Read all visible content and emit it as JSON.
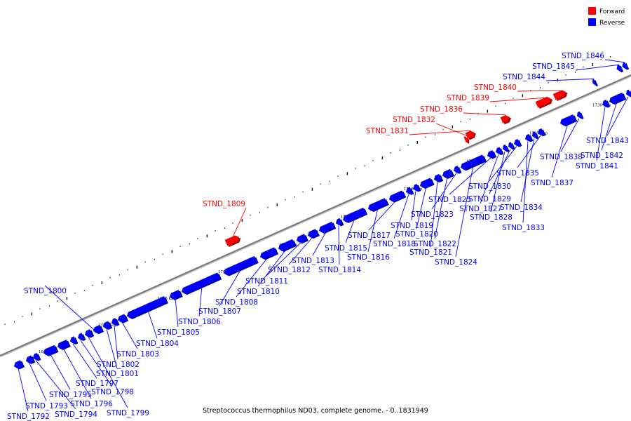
{
  "caption": "Streptococcus thermophilus ND03, complete genome. - 0..1831949",
  "legend": [
    {
      "label": "Forward",
      "color": "#ff0000"
    },
    {
      "label": "Reverse",
      "color": "#0000ff"
    }
  ],
  "colors": {
    "forward": "#ff0000",
    "reverse": "#0000ff",
    "axis": "#7a7a7a"
  },
  "kbp_labels": [
    "1685 kbp",
    "1690 kbp",
    "1695 kbp",
    "1700 kbp",
    "1705 kbp",
    "1710 kbp",
    "1715 kbp",
    "1720 kbp",
    "1725 kbp",
    "1730 kbp"
  ],
  "genes": [
    {
      "name": "STND_1792",
      "strand": "reverse"
    },
    {
      "name": "STND_1793",
      "strand": "reverse"
    },
    {
      "name": "STND_1794",
      "strand": "reverse"
    },
    {
      "name": "STND_1795",
      "strand": "reverse"
    },
    {
      "name": "STND_1796",
      "strand": "reverse"
    },
    {
      "name": "STND_1797",
      "strand": "reverse"
    },
    {
      "name": "STND_1798",
      "strand": "reverse"
    },
    {
      "name": "STND_1799",
      "strand": "reverse"
    },
    {
      "name": "STND_1800",
      "strand": "reverse"
    },
    {
      "name": "STND_1801",
      "strand": "reverse"
    },
    {
      "name": "STND_1802",
      "strand": "reverse"
    },
    {
      "name": "STND_1803",
      "strand": "reverse"
    },
    {
      "name": "STND_1804",
      "strand": "reverse"
    },
    {
      "name": "STND_1805",
      "strand": "reverse"
    },
    {
      "name": "STND_1806",
      "strand": "reverse"
    },
    {
      "name": "STND_1807",
      "strand": "reverse"
    },
    {
      "name": "STND_1808",
      "strand": "reverse"
    },
    {
      "name": "STND_1809",
      "strand": "forward"
    },
    {
      "name": "STND_1810",
      "strand": "reverse"
    },
    {
      "name": "STND_1811",
      "strand": "reverse"
    },
    {
      "name": "STND_1812",
      "strand": "reverse"
    },
    {
      "name": "STND_1813",
      "strand": "reverse"
    },
    {
      "name": "STND_1814",
      "strand": "reverse"
    },
    {
      "name": "STND_1815",
      "strand": "reverse"
    },
    {
      "name": "STND_1816",
      "strand": "reverse"
    },
    {
      "name": "STND_1817",
      "strand": "reverse"
    },
    {
      "name": "STND_1818",
      "strand": "reverse"
    },
    {
      "name": "STND_1819",
      "strand": "reverse"
    },
    {
      "name": "STND_1820",
      "strand": "reverse"
    },
    {
      "name": "STND_1821",
      "strand": "reverse"
    },
    {
      "name": "STND_1822",
      "strand": "reverse"
    },
    {
      "name": "STND_1823",
      "strand": "reverse"
    },
    {
      "name": "STND_1824",
      "strand": "reverse"
    },
    {
      "name": "STND_1825",
      "strand": "reverse"
    },
    {
      "name": "STND_1827",
      "strand": "reverse"
    },
    {
      "name": "STND_1828",
      "strand": "reverse"
    },
    {
      "name": "STND_1829",
      "strand": "reverse"
    },
    {
      "name": "STND_1830",
      "strand": "reverse"
    },
    {
      "name": "STND_1831",
      "strand": "forward"
    },
    {
      "name": "STND_1832",
      "strand": "forward"
    },
    {
      "name": "STND_1833",
      "strand": "reverse"
    },
    {
      "name": "STND_1834",
      "strand": "reverse"
    },
    {
      "name": "STND_1835",
      "strand": "reverse"
    },
    {
      "name": "STND_1836",
      "strand": "forward"
    },
    {
      "name": "STND_1837",
      "strand": "reverse"
    },
    {
      "name": "STND_1838",
      "strand": "reverse"
    },
    {
      "name": "STND_1839",
      "strand": "forward"
    },
    {
      "name": "STND_1840",
      "strand": "forward"
    },
    {
      "name": "STND_1841",
      "strand": "reverse"
    },
    {
      "name": "STND_1842",
      "strand": "reverse"
    },
    {
      "name": "STND_1843",
      "strand": "reverse"
    },
    {
      "name": "STND_1844",
      "strand": "reverse"
    },
    {
      "name": "STND_1845",
      "strand": "reverse"
    },
    {
      "name": "STND_1846",
      "strand": "reverse"
    }
  ]
}
